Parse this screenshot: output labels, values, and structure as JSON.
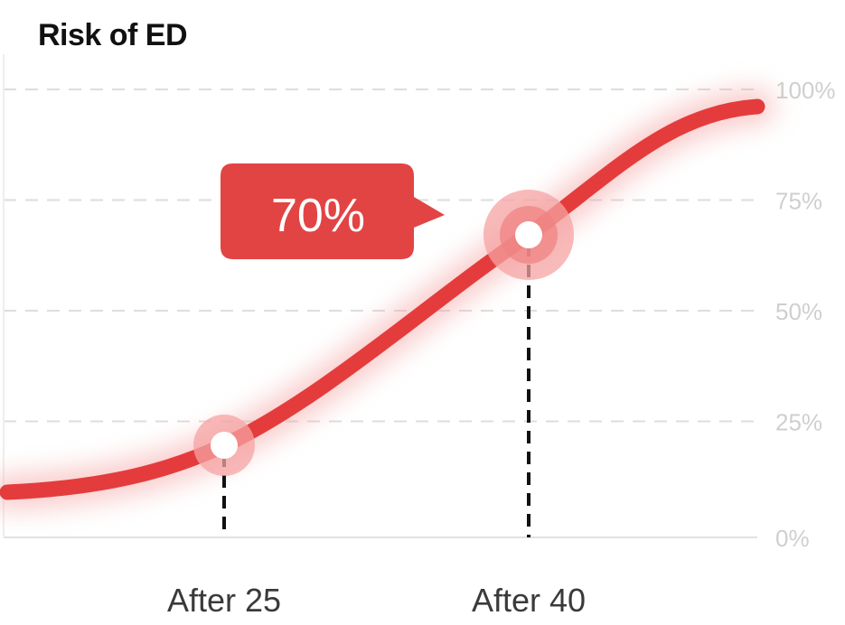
{
  "chart_data": {
    "type": "line",
    "title": "Risk of ED",
    "xlabel": "",
    "ylabel": "",
    "ylim": [
      0,
      100
    ],
    "y_ticks": [
      "0%",
      "25%",
      "50%",
      "75%",
      "100%"
    ],
    "y_tick_values": [
      0,
      25,
      50,
      75,
      100
    ],
    "grid": true,
    "colors": {
      "line": "#e43c3c",
      "glow": "#f5a3a3",
      "callout": "#e24444",
      "grid": "#dddddd"
    },
    "highlighted_points": [
      {
        "label": "After 25",
        "y": 21
      },
      {
        "label": "After 40",
        "y": 70
      }
    ],
    "callout": {
      "text": "70%",
      "y": 70
    }
  }
}
